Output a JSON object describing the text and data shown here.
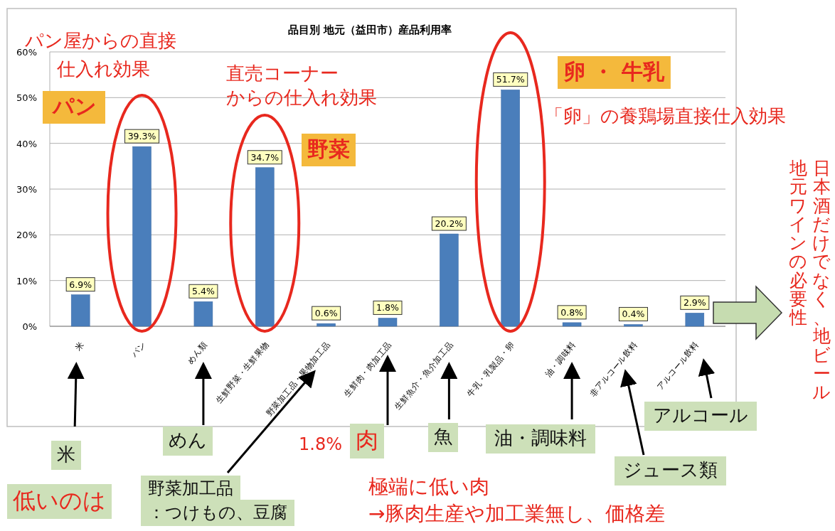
{
  "chart_data": {
    "type": "bar",
    "title": "品目別 地元（益田市）産品利用率",
    "categories": [
      "米",
      "パン",
      "めん類",
      "生鮮野菜・生鮮果物",
      "野菜加工品・果物加工品",
      "生鮮肉・肉加工品",
      "生鮮魚介・魚介加工品",
      "牛乳・乳製品・卵",
      "油・調味料",
      "非アルコール飲料",
      "アルコール飲料"
    ],
    "values": [
      6.9,
      39.3,
      5.4,
      34.7,
      0.6,
      1.8,
      20.2,
      51.7,
      0.8,
      0.4,
      2.9
    ],
    "value_labels": [
      "6.9%",
      "39.3%",
      "5.4%",
      "34.7%",
      "0.6%",
      "1.8%",
      "20.2%",
      "51.7%",
      "0.8%",
      "0.4%",
      "2.9%"
    ],
    "color": "#4a7ebb",
    "ylim": [
      0,
      60
    ],
    "yticks": [
      {
        "value": 0,
        "label": "0%"
      },
      {
        "value": 10,
        "label": "10%"
      },
      {
        "value": 20,
        "label": "20%"
      },
      {
        "value": 30,
        "label": "30%"
      },
      {
        "value": 40,
        "label": "40%"
      },
      {
        "value": 50,
        "label": "50%"
      },
      {
        "value": 60,
        "label": "60%"
      }
    ],
    "grid": "y",
    "annotations": [
      "パン屋からの直接",
      "仕入れ効果",
      "パン",
      "直売コーナー",
      "からの仕入れ効果",
      "野菜",
      "卵 ・ 牛乳",
      "「卵」の養鶏場直接仕入効果",
      "日本酒だけでなく、地ビール",
      "地元ワインの必要性",
      "米",
      "めん",
      "野菜加工品",
      "：つけもの、豆腐",
      "1.8%",
      "肉",
      "魚",
      "油・調味料",
      "アルコール",
      "ジュース類",
      "低いのは",
      "極端に低い肉",
      "→豚肉生産や加工業無し、価格差"
    ]
  }
}
